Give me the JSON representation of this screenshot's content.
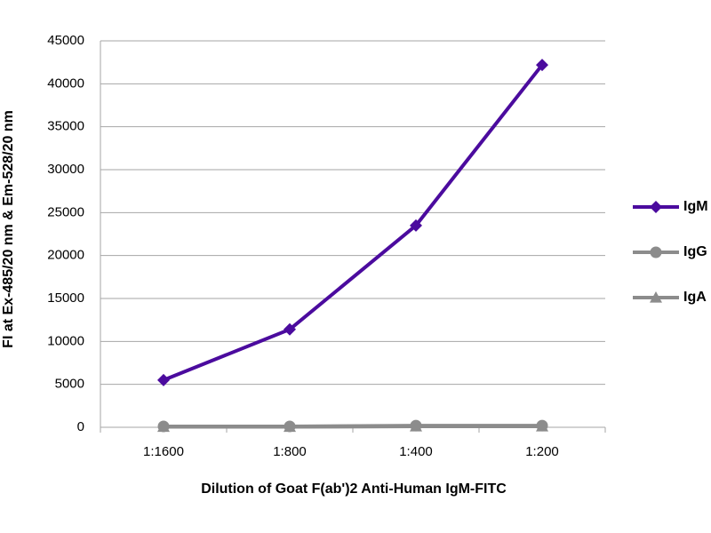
{
  "chart_data": {
    "type": "line",
    "x_label": "Dilution of Goat F(ab')2 Anti-Human IgM-FITC",
    "y_label": "FI at Ex-485/20 nm & Em-528/20 nm",
    "categories": [
      "1:1600",
      "1:800",
      "1:400",
      "1:200"
    ],
    "series": [
      {
        "name": "IgM",
        "color": "#4b0b9e",
        "marker": "diamond",
        "values": [
          5500,
          11400,
          23500,
          42200
        ]
      },
      {
        "name": "IgG",
        "color": "#8c8c8c",
        "marker": "circle",
        "values": [
          100,
          100,
          200,
          200
        ]
      },
      {
        "name": "IgA",
        "color": "#8c8c8c",
        "marker": "triangle",
        "values": [
          50,
          50,
          100,
          100
        ]
      }
    ],
    "ylim": [
      0,
      45000
    ],
    "yticks": [
      0,
      5000,
      10000,
      15000,
      20000,
      25000,
      30000,
      35000,
      40000,
      45000
    ],
    "grid": true,
    "legend": "right"
  }
}
